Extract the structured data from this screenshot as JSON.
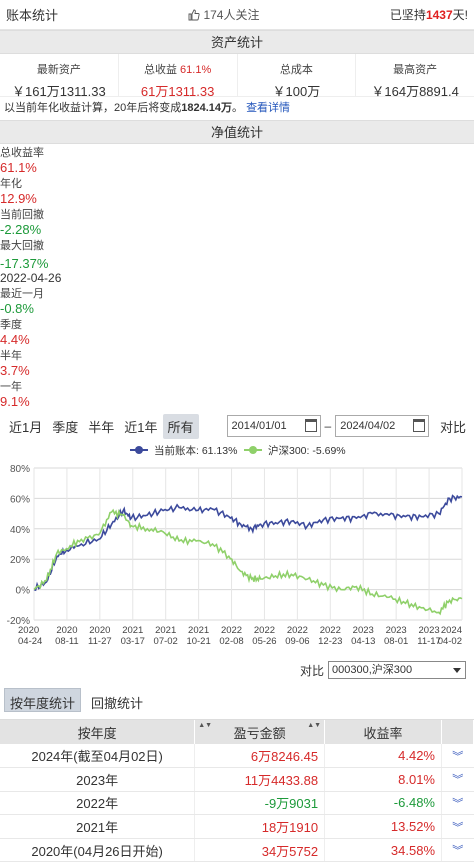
{
  "topbar": {
    "title": "账本统计",
    "follow": "174人关注",
    "persist_prefix": "已坚持",
    "persist_days": "1437",
    "persist_suffix": "天!"
  },
  "asset": {
    "heading": "资产统计",
    "items": [
      {
        "label": "最新资产",
        "value": "￥161万1311.33"
      },
      {
        "label": "总收益",
        "label_extra": "61.1%",
        "value": "61万1311.33"
      },
      {
        "label": "总成本",
        "value": "￥100万"
      },
      {
        "label": "最高资产",
        "value": "￥164万8891.4"
      }
    ],
    "note_prefix": "以当前年化收益计算，20年后将变成",
    "note_value": "1824.14万",
    "note_suffix": "。",
    "note_link": "查看详情"
  },
  "nav": {
    "heading": "净值统计",
    "row1": [
      {
        "label": "总收益率",
        "value": "61.1%",
        "tone": "red"
      },
      {
        "label": "年化",
        "value": "12.9%",
        "tone": "red"
      },
      {
        "label": "当前回撤",
        "value": "-2.28%",
        "tone": "green"
      },
      {
        "label": "最大回撤",
        "value": "-17.37%",
        "tone": "green",
        "date": "2022-04-26"
      }
    ],
    "row2": [
      {
        "label": "最近一月",
        "value": "-0.8%",
        "tone": "green"
      },
      {
        "label": "季度",
        "value": "4.4%",
        "tone": "red"
      },
      {
        "label": "半年",
        "value": "3.7%",
        "tone": "red"
      },
      {
        "label": "一年",
        "value": "9.1%",
        "tone": "red"
      }
    ]
  },
  "controls": {
    "periods": [
      "近1月",
      "季度",
      "半年",
      "近1年",
      "所有"
    ],
    "active_period": "所有",
    "start_date": "2014/01/01",
    "end_date": "2024/04/02",
    "compare_button": "对比"
  },
  "compare": {
    "label": "对比",
    "value": "000300,沪深300"
  },
  "chart_data": {
    "type": "line",
    "legend_position": "top",
    "grid": true,
    "yticks": [
      "80%",
      "60%",
      "40%",
      "20%",
      "0%",
      "-20%"
    ],
    "ylim": [
      -20,
      80
    ],
    "xlabels": [
      "2020\n04-24",
      "2020\n08-11",
      "2020\n11-27",
      "2021\n03-17",
      "2021\n07-02",
      "2021\n10-21",
      "2022\n02-08",
      "2022\n05-26",
      "2022\n09-06",
      "2022\n12-23",
      "2023\n04-13",
      "2023\n08-01",
      "2023\n11-17",
      "2024\n04-02"
    ],
    "x": [
      "2020-04-24",
      "2020-06-05",
      "2020-07-10",
      "2020-08-11",
      "2020-09-30",
      "2020-11-27",
      "2021-01-10",
      "2021-02-18",
      "2021-03-17",
      "2021-05-10",
      "2021-07-02",
      "2021-08-25",
      "2021-10-21",
      "2021-12-15",
      "2022-02-08",
      "2022-03-20",
      "2022-04-26",
      "2022-05-26",
      "2022-07-15",
      "2022-09-06",
      "2022-10-31",
      "2022-12-23",
      "2023-02-20",
      "2023-04-13",
      "2023-06-05",
      "2023-08-01",
      "2023-09-25",
      "2023-11-17",
      "2024-01-15",
      "2024-02-20",
      "2024-04-02"
    ],
    "series": [
      {
        "name": "当前账本: 61.13%",
        "color": "#3c4a9c",
        "values": [
          0,
          5,
          22,
          26,
          30,
          33,
          43,
          52,
          47,
          49,
          52,
          54,
          52,
          53,
          48,
          43,
          40,
          43,
          44,
          45,
          42,
          46,
          47,
          47,
          50,
          49,
          48,
          48,
          50,
          60,
          61
        ]
      },
      {
        "name": "沪深300: -5.69%",
        "color": "#8fd06a",
        "values": [
          0,
          6,
          24,
          27,
          33,
          36,
          51,
          49,
          42,
          40,
          38,
          32,
          32,
          30,
          22,
          12,
          7,
          7,
          9,
          10,
          7,
          3,
          0,
          2,
          -3,
          -5,
          -9,
          -12,
          -15,
          -7,
          -6
        ]
      }
    ]
  },
  "yearly": {
    "tabs": [
      "按年度统计",
      "回撤统计"
    ],
    "active_tab": "按年度统计",
    "headers": [
      "按年度",
      "盈亏金额",
      "收益率"
    ],
    "rows": [
      {
        "year": "2024年(截至04月02日)",
        "amount": "6万8246.45",
        "rate": "4.42%",
        "tone": "red"
      },
      {
        "year": "2023年",
        "amount": "11万4433.88",
        "rate": "8.01%",
        "tone": "red"
      },
      {
        "year": "2022年",
        "amount": "-9万9031",
        "rate": "-6.48%",
        "tone": "green"
      },
      {
        "year": "2021年",
        "amount": "18万1910",
        "rate": "13.52%",
        "tone": "red"
      },
      {
        "year": "2020年(04月26日开始)",
        "amount": "34万5752",
        "rate": "34.58%",
        "tone": "red"
      }
    ]
  }
}
